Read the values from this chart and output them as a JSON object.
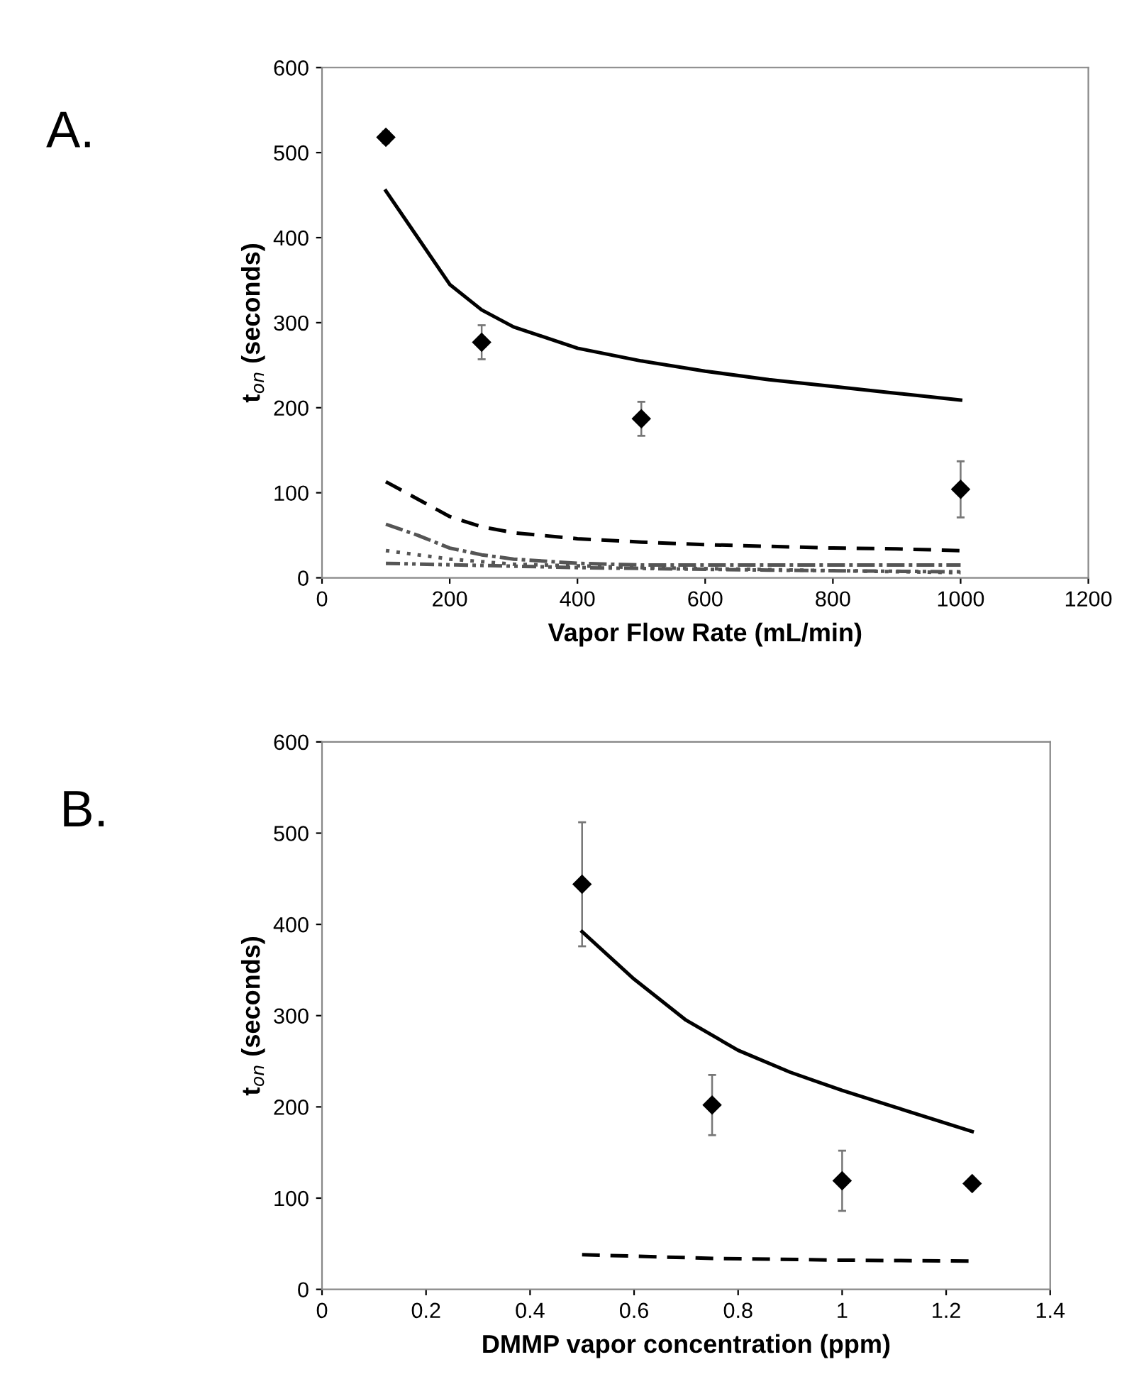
{
  "chart_data": [
    {
      "type": "line",
      "xlabel": "Vapor Flow Rate (mL/min)",
      "ylabel": "t$_{on}$ (seconds)",
      "annotations": [
        "A."
      ],
      "xlim": [
        0,
        1200
      ],
      "xticks": [
        0,
        200,
        400,
        600,
        800,
        1000,
        1200
      ],
      "ylim": [
        0,
        600
      ],
      "yticks": [
        0,
        100,
        200,
        300,
        400,
        500,
        600
      ],
      "grid": false,
      "legend": false,
      "series": [
        {
          "type": "scatter",
          "color": "#000000",
          "marker": "diamond",
          "x": [
            100,
            250,
            500,
            1000
          ],
          "values": [
            518,
            277,
            187,
            104
          ],
          "errors": [
            7,
            20,
            20,
            33
          ]
        },
        {
          "color": "#000000",
          "line_style": "solid",
          "marker": "none",
          "x": [
            100,
            150,
            200,
            250,
            300,
            400,
            500,
            600,
            700,
            800,
            900,
            1000
          ],
          "values": [
            455,
            400,
            345,
            315,
            295,
            270,
            255,
            243,
            233,
            225,
            217,
            209
          ]
        },
        {
          "color": "#000000",
          "line_style": "dashed",
          "marker": "none",
          "x": [
            100,
            200,
            250,
            300,
            400,
            500,
            600,
            700,
            800,
            900,
            1000
          ],
          "values": [
            113,
            72,
            60,
            53,
            46,
            42,
            39,
            37,
            35,
            34,
            32
          ]
        },
        {
          "color": "#555555",
          "line_style": "dashdot",
          "marker": "none",
          "x": [
            100,
            150,
            200,
            250,
            300,
            400,
            500,
            700,
            1000
          ],
          "values": [
            63,
            50,
            35,
            27,
            22,
            17,
            15,
            15,
            15
          ]
        },
        {
          "color": "#555555",
          "line_style": "dotted",
          "marker": "none",
          "x": [
            100,
            200,
            300,
            500,
            1000
          ],
          "values": [
            32,
            22,
            16,
            12,
            6
          ]
        },
        {
          "color": "#555555",
          "line_style": "dashdotdot",
          "marker": "none",
          "x": [
            100,
            400,
            700,
            1000
          ],
          "values": [
            17,
            12,
            9,
            7
          ]
        }
      ]
    },
    {
      "type": "line",
      "xlabel": "DMMP vapor concentration (ppm)",
      "ylabel": "t$_{on}$ (seconds)",
      "annotations": [
        "B."
      ],
      "xlim": [
        0,
        1.4
      ],
      "xticks": [
        0,
        0.2,
        0.4,
        0.6,
        0.8,
        1,
        1.2,
        1.4
      ],
      "ylim": [
        0,
        600
      ],
      "yticks": [
        0,
        100,
        200,
        300,
        400,
        500,
        600
      ],
      "grid": false,
      "legend": false,
      "series": [
        {
          "type": "scatter",
          "color": "#000000",
          "marker": "diamond",
          "x": [
            0.5,
            0.75,
            1.0,
            1.25
          ],
          "values": [
            444,
            202,
            119,
            116
          ],
          "errors": [
            68,
            33,
            33,
            3
          ]
        },
        {
          "color": "#000000",
          "line_style": "solid",
          "marker": "none",
          "x": [
            0.5,
            0.6,
            0.7,
            0.8,
            0.9,
            1.0,
            1.1,
            1.25
          ],
          "values": [
            392,
            340,
            295,
            262,
            238,
            218,
            200,
            173
          ]
        },
        {
          "color": "#000000",
          "line_style": "dashed",
          "marker": "none",
          "x": [
            0.5,
            0.75,
            1.0,
            1.25
          ],
          "values": [
            38,
            34,
            32,
            31
          ]
        }
      ]
    }
  ]
}
